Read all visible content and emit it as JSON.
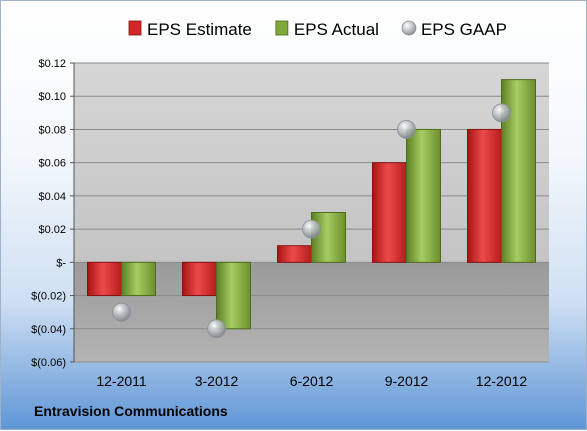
{
  "company_name": "Entravision Communications",
  "chart_data": {
    "type": "bar",
    "title": "",
    "xlabel": "",
    "ylabel": "",
    "categories": [
      "12-2011",
      "3-2012",
      "6-2012",
      "9-2012",
      "12-2012"
    ],
    "ylim": [
      -0.06,
      0.12
    ],
    "yticks": [
      0.12,
      0.1,
      0.08,
      0.06,
      0.04,
      0.02,
      0,
      -0.02,
      -0.04,
      -0.06
    ],
    "ytick_labels": [
      "$0.12",
      "$0.10",
      "$0.08",
      "$0.06",
      "$0.04",
      "$0.02",
      "$-",
      "$(0.02)",
      "$(0.04)",
      "$(0.06)"
    ],
    "grid": true,
    "legend_position": "top",
    "series": [
      {
        "name": "EPS Estimate",
        "kind": "bar",
        "color": "#d42828",
        "values": [
          -0.02,
          -0.02,
          0.01,
          0.06,
          0.08
        ]
      },
      {
        "name": "EPS Actual",
        "kind": "bar",
        "color": "#7fa83a",
        "values": [
          -0.02,
          -0.04,
          0.03,
          0.08,
          0.11
        ]
      },
      {
        "name": "EPS GAAP",
        "kind": "marker",
        "color": "#9aa0a6",
        "values": [
          -0.03,
          -0.04,
          0.02,
          0.08,
          0.09
        ]
      }
    ]
  }
}
